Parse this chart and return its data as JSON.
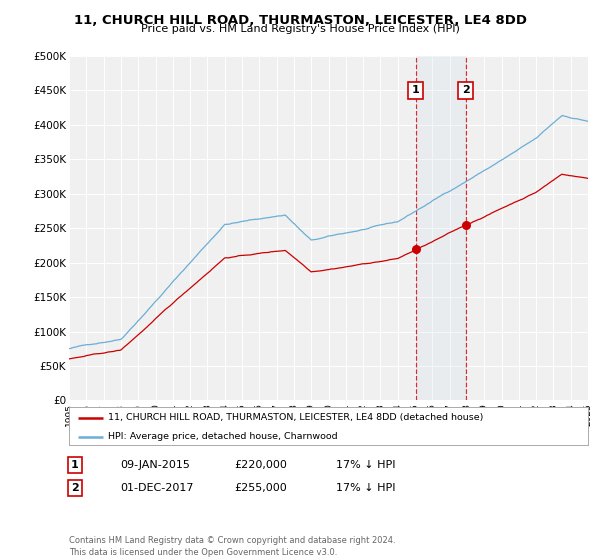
{
  "title": "11, CHURCH HILL ROAD, THURMASTON, LEICESTER, LE4 8DD",
  "subtitle": "Price paid vs. HM Land Registry's House Price Index (HPI)",
  "ylabel_ticks": [
    "£0",
    "£50K",
    "£100K",
    "£150K",
    "£200K",
    "£250K",
    "£300K",
    "£350K",
    "£400K",
    "£450K",
    "£500K"
  ],
  "ytick_values": [
    0,
    50000,
    100000,
    150000,
    200000,
    250000,
    300000,
    350000,
    400000,
    450000,
    500000
  ],
  "x_start_year": 1995,
  "x_end_year": 2025,
  "hpi_color": "#6baed6",
  "price_color": "#cc0000",
  "transaction1_date": 2015.04,
  "transaction1_price": 220000,
  "transaction2_date": 2017.92,
  "transaction2_price": 255000,
  "legend_house_label": "11, CHURCH HILL ROAD, THURMASTON, LEICESTER, LE4 8DD (detached house)",
  "legend_hpi_label": "HPI: Average price, detached house, Charnwood",
  "annotation1_text": "09-JAN-2015",
  "annotation1_price": "£220,000",
  "annotation1_note": "17% ↓ HPI",
  "annotation2_text": "01-DEC-2017",
  "annotation2_price": "£255,000",
  "annotation2_note": "17% ↓ HPI",
  "footnote": "Contains HM Land Registry data © Crown copyright and database right 2024.\nThis data is licensed under the Open Government Licence v3.0.",
  "background_color": "#ffffff",
  "plot_bg_color": "#f0f0f0"
}
